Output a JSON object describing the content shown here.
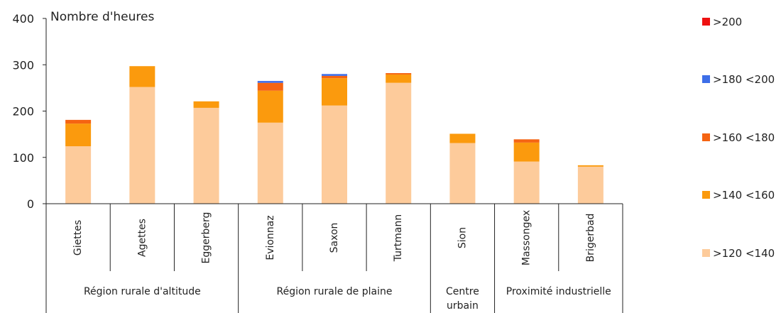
{
  "chart_data": {
    "type": "bar",
    "stacked": true,
    "ylabel": "Nombre d'heures",
    "ylim": [
      0,
      400
    ],
    "yticks": [
      0,
      100,
      200,
      300,
      400
    ],
    "grid": false,
    "legend_position": "right",
    "categories": [
      "Giettes",
      "Agettes",
      "Eggerberg",
      "Evionnaz",
      "Saxon",
      "Turtmann",
      "Sion",
      "Massongex",
      "Brigerbad"
    ],
    "groups": [
      {
        "label_lines": [
          "Région rurale d'altitude"
        ],
        "span": 3
      },
      {
        "label_lines": [
          "Région rurale de plaine"
        ],
        "span": 3
      },
      {
        "label_lines": [
          "Centre",
          "urbain"
        ],
        "span": 1
      },
      {
        "label_lines": [
          "Proximité industrielle"
        ],
        "span": 2
      }
    ],
    "series": [
      {
        "name": ">120 <140",
        "color": "#FDCB9B",
        "values": [
          124,
          252,
          207,
          175,
          212,
          261,
          131,
          91,
          80
        ]
      },
      {
        "name": ">140 <160",
        "color": "#FB9A0D",
        "values": [
          49,
          45,
          14,
          69,
          59,
          18,
          20,
          41,
          3
        ]
      },
      {
        "name": ">160 <180",
        "color": "#F56412",
        "values": [
          8,
          0,
          0,
          17,
          5,
          3,
          0,
          7,
          0
        ]
      },
      {
        "name": ">180 <200",
        "color": "#3D6EE8",
        "values": [
          0,
          0,
          0,
          4,
          4,
          0,
          0,
          0,
          0
        ]
      },
      {
        "name": ">200",
        "color": "#EE1111",
        "values": [
          0,
          0,
          0,
          0,
          0,
          0,
          0,
          0,
          0
        ]
      }
    ],
    "legend_order": [
      ">200",
      ">180 <200",
      ">160 <180",
      ">140 <160",
      ">120 <140"
    ]
  }
}
